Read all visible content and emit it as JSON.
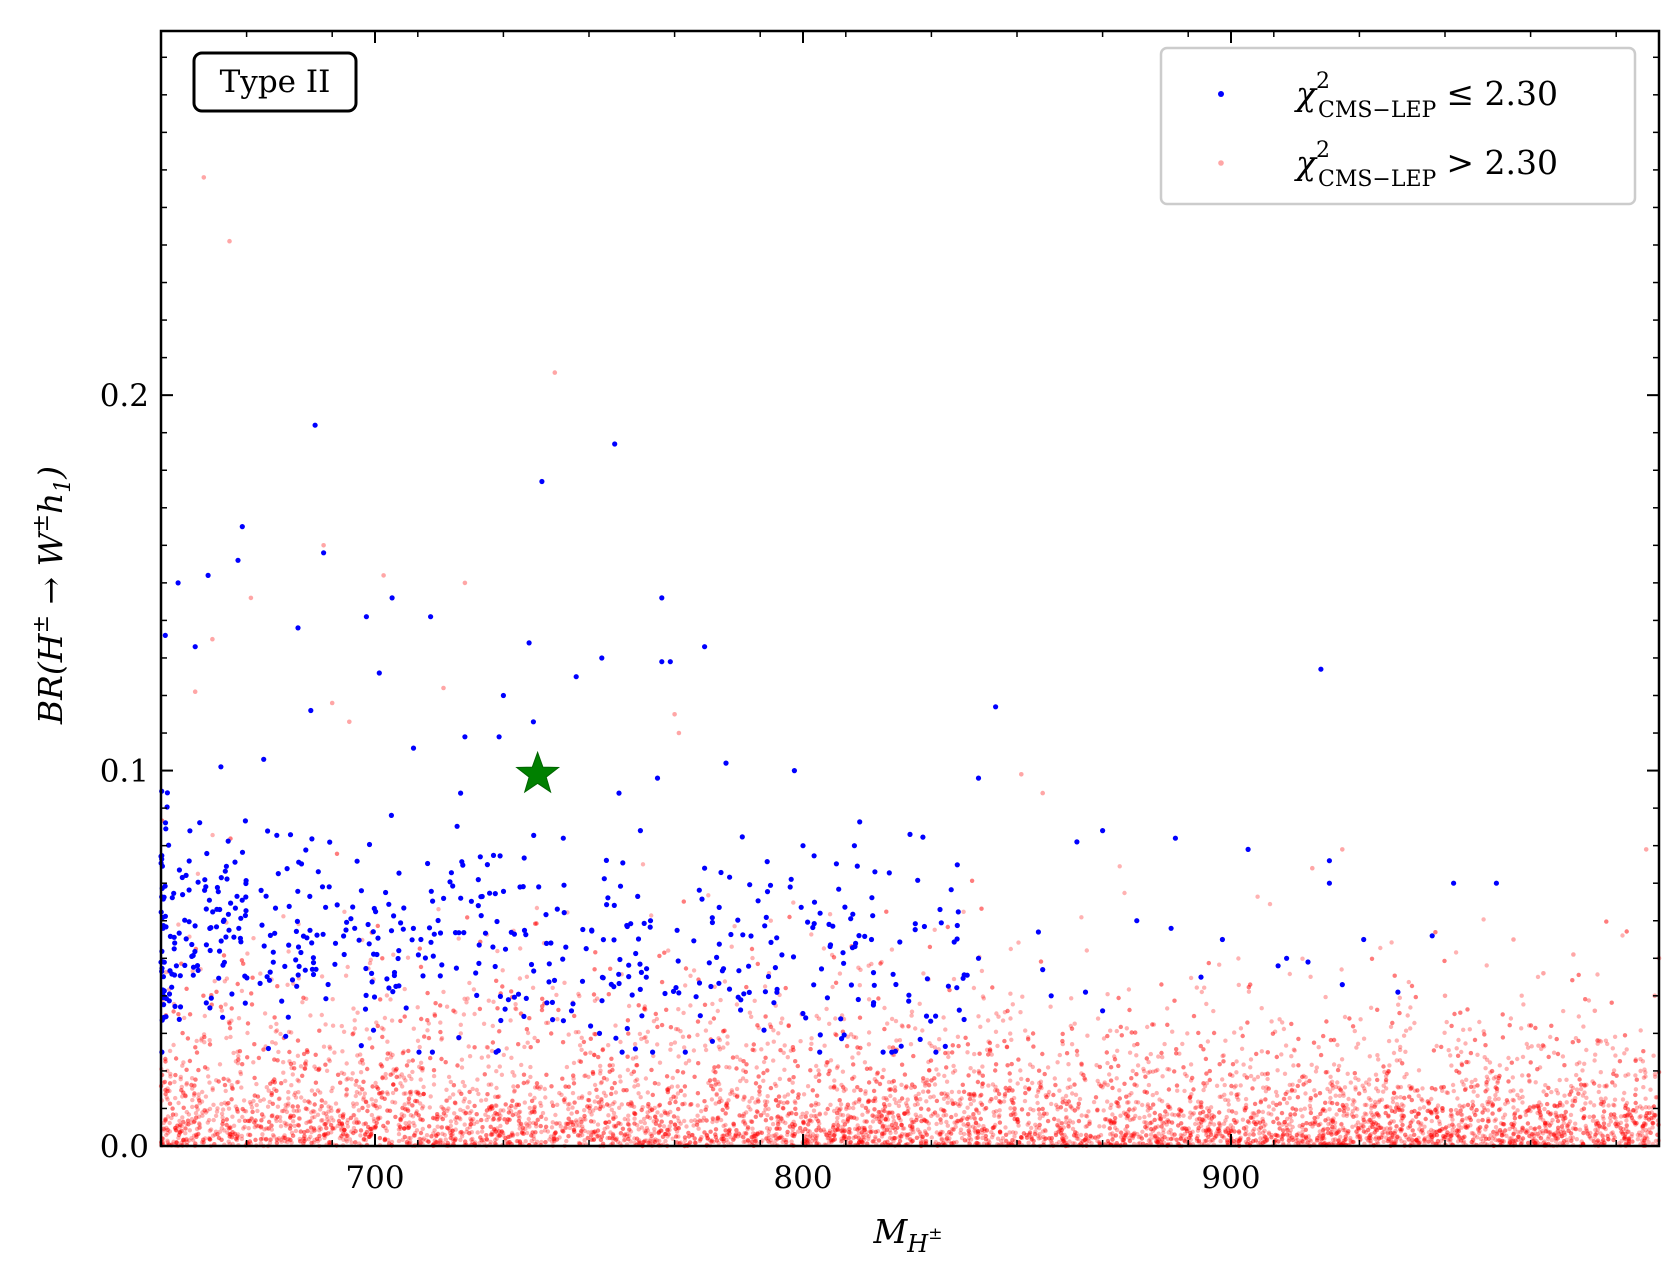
{
  "chart_data": {
    "type": "scatter",
    "title": "",
    "xlabel": "M_{H±}",
    "ylabel": "BR(H± → W±h1)",
    "xlim": [
      650,
      1000
    ],
    "ylim": [
      0.0,
      0.297
    ],
    "x_ticks": [
      700,
      800,
      900
    ],
    "x_tick_labels": [
      "700",
      "800",
      "900"
    ],
    "y_ticks": [
      0.0,
      0.1,
      0.2
    ],
    "y_tick_labels": [
      "0.0",
      "0.1",
      "0.2"
    ],
    "grid": false,
    "legend_position": "top-right",
    "annotation": "Type II",
    "colors": {
      "pass": "#0000ff",
      "fail": "#ff0000",
      "benchmark": "#008000"
    },
    "series": [
      {
        "name": "χ²CMS−LEP ≤ 2.30",
        "legend_main": "χ",
        "legend_sup": "2",
        "legend_sub": "CMS−LEP",
        "legend_rel": "≤ 2.30",
        "color": "#0000ff",
        "points": [
          [
            686,
            0.192
          ],
          [
            756,
            0.187
          ],
          [
            739,
            0.177
          ],
          [
            669,
            0.165
          ],
          [
            688,
            0.158
          ],
          [
            668,
            0.156
          ],
          [
            661,
            0.152
          ],
          [
            654,
            0.15
          ],
          [
            767,
            0.146
          ],
          [
            704,
            0.146
          ],
          [
            698,
            0.141
          ],
          [
            713,
            0.141
          ],
          [
            682,
            0.138
          ],
          [
            651,
            0.136
          ],
          [
            736,
            0.134
          ],
          [
            777,
            0.133
          ],
          [
            658,
            0.133
          ],
          [
            753,
            0.13
          ],
          [
            767,
            0.129
          ],
          [
            769,
            0.129
          ],
          [
            921,
            0.127
          ],
          [
            701,
            0.126
          ],
          [
            747,
            0.125
          ],
          [
            730,
            0.12
          ],
          [
            737,
            0.113
          ],
          [
            685,
            0.116
          ],
          [
            845,
            0.117
          ],
          [
            721,
            0.109
          ],
          [
            729,
            0.109
          ],
          [
            709,
            0.106
          ],
          [
            782,
            0.102
          ],
          [
            674,
            0.103
          ],
          [
            664,
            0.101
          ],
          [
            737,
            0.099
          ],
          [
            766,
            0.098
          ],
          [
            798,
            0.1
          ],
          [
            841,
            0.098
          ],
          [
            720,
            0.094
          ],
          [
            757,
            0.094
          ],
          [
            762,
            0.084
          ],
          [
            800,
            0.08
          ],
          [
            812,
            0.08
          ],
          [
            825,
            0.083
          ],
          [
            864,
            0.081
          ],
          [
            870,
            0.084
          ],
          [
            887,
            0.082
          ],
          [
            904,
            0.079
          ],
          [
            923,
            0.076
          ],
          [
            952,
            0.07
          ],
          [
            962,
            0.07
          ],
          [
            744,
            0.082
          ],
          [
            777,
            0.074
          ],
          [
            797,
            0.069
          ],
          [
            804,
            0.062
          ],
          [
            816,
            0.055
          ],
          [
            832,
            0.063
          ],
          [
            878,
            0.06
          ],
          [
            898,
            0.055
          ],
          [
            923,
            0.07
          ],
          [
            931,
            0.055
          ],
          [
            947,
            0.056
          ],
          [
            913,
            0.05
          ],
          [
            886,
            0.058
          ],
          [
            918,
            0.049
          ],
          [
            939,
            0.041
          ],
          [
            926,
            0.043
          ],
          [
            870,
            0.036
          ],
          [
            858,
            0.04
          ],
          [
            893,
            0.045
          ],
          [
            911,
            0.048
          ],
          [
            856,
            0.047
          ],
          [
            866,
            0.041
          ],
          [
            841,
            0.05
          ],
          [
            855,
            0.057
          ]
        ],
        "dense_cluster": {
          "x_range": [
            650,
            840
          ],
          "y_range": [
            0.025,
            0.1
          ],
          "count": 520
        }
      },
      {
        "name": "χ²CMS−LEP > 2.30",
        "legend_main": "χ",
        "legend_sup": "2",
        "legend_sub": "CMS−LEP",
        "legend_rel": "> 2.30",
        "color": "#ff0000",
        "points": [
          [
            660,
            0.258
          ],
          [
            666,
            0.241
          ],
          [
            742,
            0.206
          ],
          [
            688,
            0.16
          ],
          [
            702,
            0.152
          ],
          [
            721,
            0.15
          ],
          [
            662,
            0.135
          ],
          [
            671,
            0.146
          ],
          [
            658,
            0.121
          ],
          [
            716,
            0.122
          ],
          [
            770,
            0.115
          ],
          [
            690,
            0.118
          ],
          [
            694,
            0.113
          ],
          [
            771,
            0.11
          ],
          [
            851,
            0.099
          ],
          [
            856,
            0.094
          ],
          [
            919,
            0.074
          ],
          [
            926,
            0.079
          ],
          [
            997,
            0.079
          ],
          [
            1000,
            0.05
          ],
          [
            999,
            0.04
          ],
          [
            973,
            0.046
          ],
          [
            950,
            0.04
          ],
          [
            985,
            0.036
          ],
          [
            980,
            0.051
          ],
          [
            966,
            0.055
          ]
        ],
        "density": {
          "x_range": [
            650,
            1000
          ],
          "y_range": [
            0.0,
            0.095
          ],
          "count": 7200
        }
      }
    ],
    "benchmark_point": {
      "x": 738,
      "y": 0.099,
      "marker": "star",
      "color": "#008000"
    }
  }
}
